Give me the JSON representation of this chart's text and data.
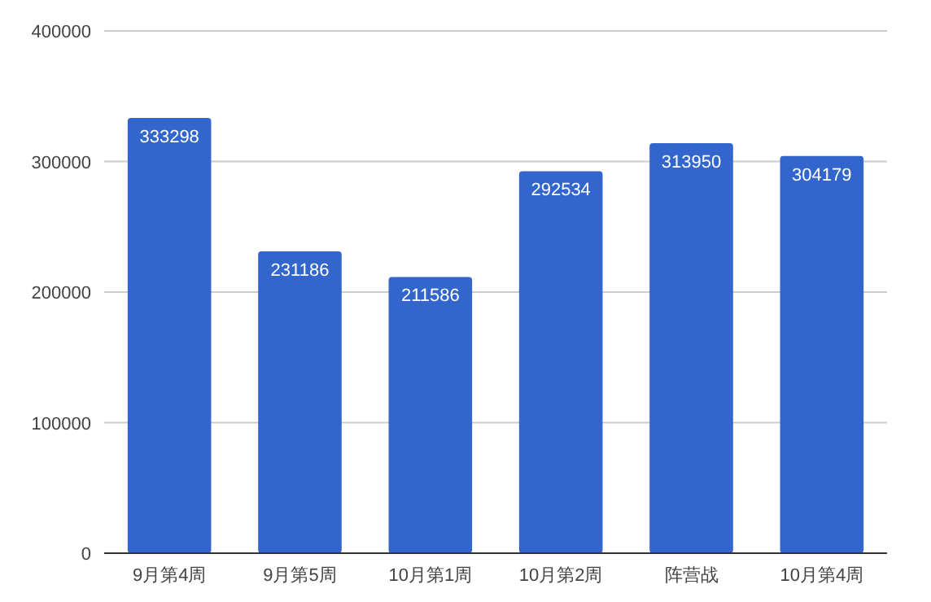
{
  "chart_data": {
    "type": "bar",
    "categories": [
      "9月第4周",
      "9月第5周",
      "10月第1周",
      "10月第2周",
      "阵营战",
      "10月第4周"
    ],
    "values": [
      333298,
      231186,
      211586,
      292534,
      313950,
      304179
    ],
    "color": "#3366cc",
    "ylim": [
      0,
      400000
    ],
    "yticks": [
      0,
      100000,
      200000,
      300000,
      400000
    ],
    "grid": "y",
    "data_labels": true
  }
}
